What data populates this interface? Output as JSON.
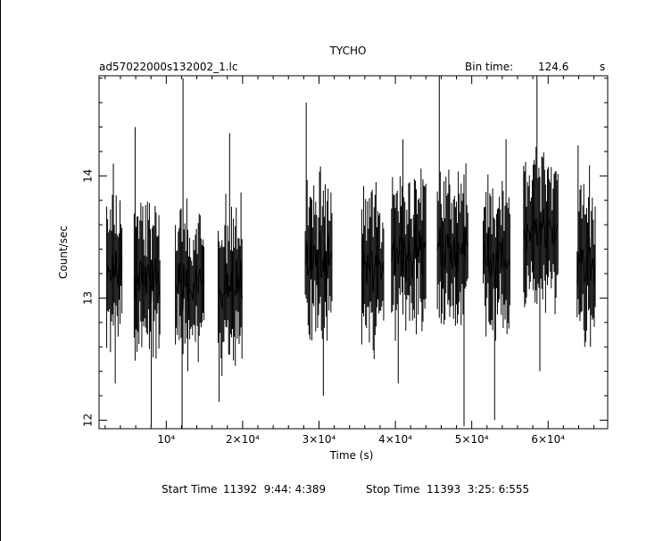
{
  "chart_data": {
    "type": "line",
    "title": "TYCHO",
    "file_label": "ad57022000s132002_1.lc",
    "bin_time_label": "Bin time:",
    "bin_time_value": "124.6",
    "bin_time_unit": "s",
    "xlabel": "Time (s)",
    "ylabel": "Count/sec",
    "xlim": [
      1200,
      67800
    ],
    "ylim": [
      11.93,
      14.82
    ],
    "x_ticks": [
      {
        "value": 10000,
        "label": "10⁴"
      },
      {
        "value": 20000,
        "label": "2×10⁴"
      },
      {
        "value": 30000,
        "label": "3×10⁴"
      },
      {
        "value": 40000,
        "label": "4×10⁴"
      },
      {
        "value": 50000,
        "label": "5×10⁴"
      },
      {
        "value": 60000,
        "label": "6×10⁴"
      }
    ],
    "y_ticks": [
      {
        "value": 12,
        "label": "12"
      },
      {
        "value": 13,
        "label": "13"
      },
      {
        "value": 14,
        "label": "14"
      }
    ],
    "segments": [
      {
        "start": 2200,
        "end": 4200,
        "mean": 13.25,
        "lo": 12.3,
        "hi": 14.1
      },
      {
        "start": 5800,
        "end": 9200,
        "mean": 13.15,
        "lo": 11.95,
        "hi": 14.4
      },
      {
        "start": 11200,
        "end": 15000,
        "mean": 13.1,
        "lo": 11.93,
        "hi": 14.8
      },
      {
        "start": 16800,
        "end": 20000,
        "mean": 13.1,
        "lo": 12.15,
        "hi": 14.35
      },
      {
        "start": 28200,
        "end": 31800,
        "mean": 13.3,
        "lo": 12.2,
        "hi": 14.6
      },
      {
        "start": 35600,
        "end": 38500,
        "mean": 13.25,
        "lo": 12.5,
        "hi": 13.95
      },
      {
        "start": 39500,
        "end": 44000,
        "mean": 13.4,
        "lo": 12.3,
        "hi": 14.3
      },
      {
        "start": 45500,
        "end": 49600,
        "mean": 13.4,
        "lo": 11.95,
        "hi": 14.82
      },
      {
        "start": 51500,
        "end": 55000,
        "mean": 13.35,
        "lo": 12.0,
        "hi": 14.3
      },
      {
        "start": 56800,
        "end": 61300,
        "mean": 13.55,
        "lo": 12.4,
        "hi": 14.82
      },
      {
        "start": 63800,
        "end": 66200,
        "mean": 13.3,
        "lo": 12.6,
        "hi": 14.25
      }
    ]
  },
  "footer": {
    "start_label": "Start Time",
    "start_value": "11392  9:44: 4:389",
    "stop_label": "Stop Time",
    "stop_value": "11393  3:25: 6:555"
  }
}
